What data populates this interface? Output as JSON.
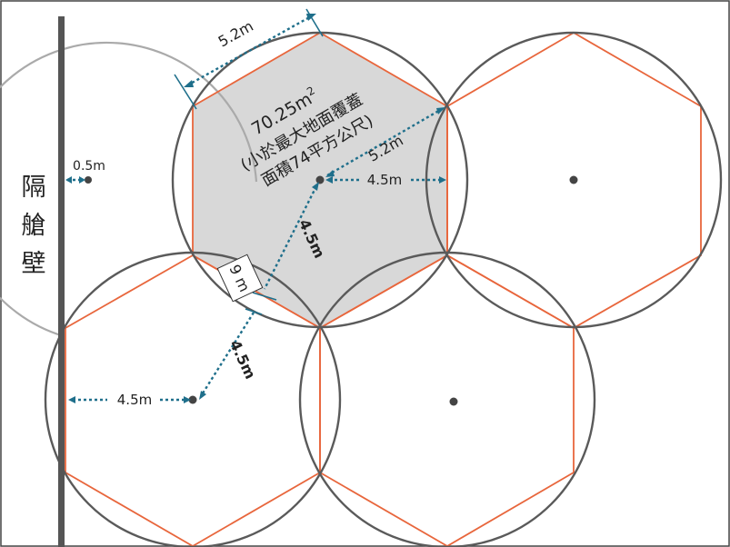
{
  "wall": {
    "label_chars": [
      "隔",
      "艙",
      "壁"
    ]
  },
  "labels": {
    "wall_offset": "0.5m",
    "hex_side": "5.2m",
    "hex_side_top": "5.2m",
    "center_to_edge_right": "4.5m",
    "center_to_edge_left": "4.5m",
    "diag_upper": "4.5m",
    "diag_lower": "4.5m",
    "spacing": "9 m"
  },
  "area_note": {
    "value": "70.25m",
    "superscript": "2",
    "line2": "(小於最大地面覆蓋",
    "line3": "面積74平方公尺)"
  },
  "colors": {
    "circle": "#5a5a5a",
    "hexagon": "#e8663c",
    "hex_fill": "#d8d8d8",
    "wall": "#555555",
    "dimension": "#1f6f8b"
  }
}
